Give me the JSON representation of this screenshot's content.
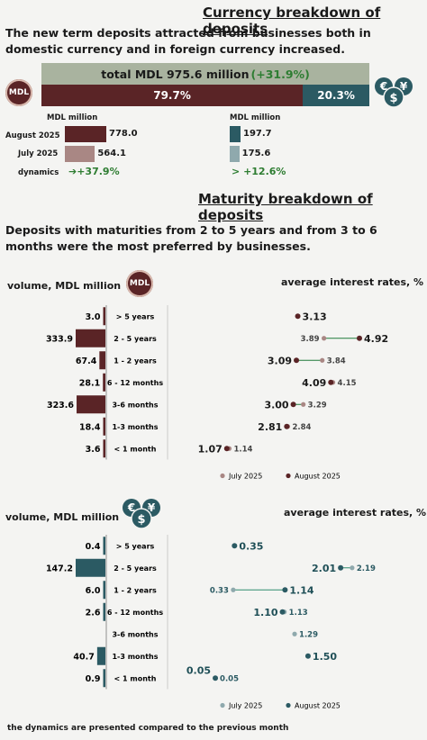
{
  "header": {
    "title": "Currency breakdown of deposits",
    "subtitle": "The new term deposits attracted from businesses both in domestic currency and in foreign currency increased."
  },
  "mdl_badge": "MDL",
  "currency_icons": [
    "euro-icon",
    "dollar-icon",
    "yen-icon"
  ],
  "total_bar": {
    "label": "total MDL 975.6 million",
    "change": "(+31.9%)",
    "mdl_share_label": "79.7%",
    "fx_share_label": "20.3%",
    "mdl_share": 79.7,
    "fx_share": 20.3,
    "colors": {
      "mdl": "#5a2426",
      "fx": "#2b5a63",
      "total": "#a9b39f"
    }
  },
  "currency_breakdown": {
    "unit_label": "MDL million",
    "rows": [
      "August 2025",
      "July 2025",
      "dynamics"
    ],
    "mdl": {
      "aug": 778.0,
      "jul": 564.1,
      "aug_label": "778.0",
      "jul_label": "564.1",
      "dynamics": "+37.9%"
    },
    "fx": {
      "aug": 197.7,
      "jul": 175.6,
      "aug_label": "197.7",
      "jul_label": "175.6",
      "dynamics": "+12.6%"
    }
  },
  "maturity": {
    "title": "Maturity breakdown of deposits",
    "subtitle": "Deposits with maturities from 2 to 5 years and from 3 to 6 months were the most preferred by businesses."
  },
  "chart_data": [
    {
      "type": "bar",
      "title": "volume, MDL million",
      "categories": [
        "> 5 years",
        "2 - 5 years",
        "1 - 2 years",
        "6 - 12 months",
        "3-6 months",
        "1-3 months",
        "< 1 month"
      ],
      "values": [
        3.0,
        333.9,
        67.4,
        28.1,
        323.6,
        18.4,
        3.6
      ],
      "labels": [
        "3.0",
        "333.9",
        "67.4",
        "28.1",
        "323.6",
        "18.4",
        "3.6"
      ],
      "color": "#5a2426"
    },
    {
      "type": "scatter",
      "title": "average interest rates, %",
      "categories": [
        "> 5 years",
        "2 - 5 years",
        "1 - 2 years",
        "6 - 12 months",
        "3-6 months",
        "1-3 months",
        "< 1 month"
      ],
      "series": [
        {
          "name": "July 2025",
          "values": [
            null,
            3.89,
            3.84,
            4.15,
            3.29,
            2.84,
            1.14
          ],
          "labels": [
            "",
            "3.89",
            "3.84",
            "4.15",
            "3.29",
            "2.84",
            "1.14"
          ],
          "color": "#a98784"
        },
        {
          "name": "August 2025",
          "values": [
            3.13,
            4.92,
            3.09,
            4.09,
            3.0,
            2.81,
            1.07
          ],
          "labels": [
            "3.13",
            "4.92",
            "3.09",
            "4.09",
            "3.00",
            "2.81",
            "1.07"
          ],
          "color": "#5a2426"
        }
      ],
      "xlim": [
        0.5,
        5.6
      ]
    },
    {
      "type": "bar",
      "title": "volume, MDL million",
      "categories": [
        "> 5 years",
        "2 - 5 years",
        "1 - 2 years",
        "6 - 12 months",
        "3-6 months",
        "1-3 months",
        "< 1 month"
      ],
      "values": [
        0.4,
        147.2,
        6.0,
        2.6,
        null,
        40.7,
        0.9
      ],
      "labels": [
        "0.4",
        "147.2",
        "6.0",
        "2.6",
        "",
        "40.7",
        "0.9"
      ],
      "color": "#2b5a63"
    },
    {
      "type": "scatter",
      "title": "average interest rates, %",
      "categories": [
        "> 5 years",
        "2 - 5 years",
        "1 - 2 years",
        "6 - 12 months",
        "3-6 months",
        "1-3 months",
        "< 1 month"
      ],
      "series": [
        {
          "name": "July 2025",
          "values": [
            null,
            2.19,
            0.33,
            1.13,
            1.29,
            null,
            0.05
          ],
          "labels": [
            "",
            "2.19",
            "0.33",
            "1.13",
            "1.29",
            "",
            "0.05"
          ],
          "color": "#8fa9ad"
        },
        {
          "name": "August 2025",
          "values": [
            0.35,
            2.01,
            1.14,
            1.1,
            null,
            1.5,
            0.05
          ],
          "labels": [
            "0.35",
            "2.01",
            "1.14",
            "1.10",
            "",
            "1.50",
            "0.05"
          ],
          "color": "#2b5a63"
        }
      ],
      "xlim": [
        -0.5,
        2.6
      ]
    }
  ],
  "footnote": "the dynamics are presented compared to the previous month"
}
